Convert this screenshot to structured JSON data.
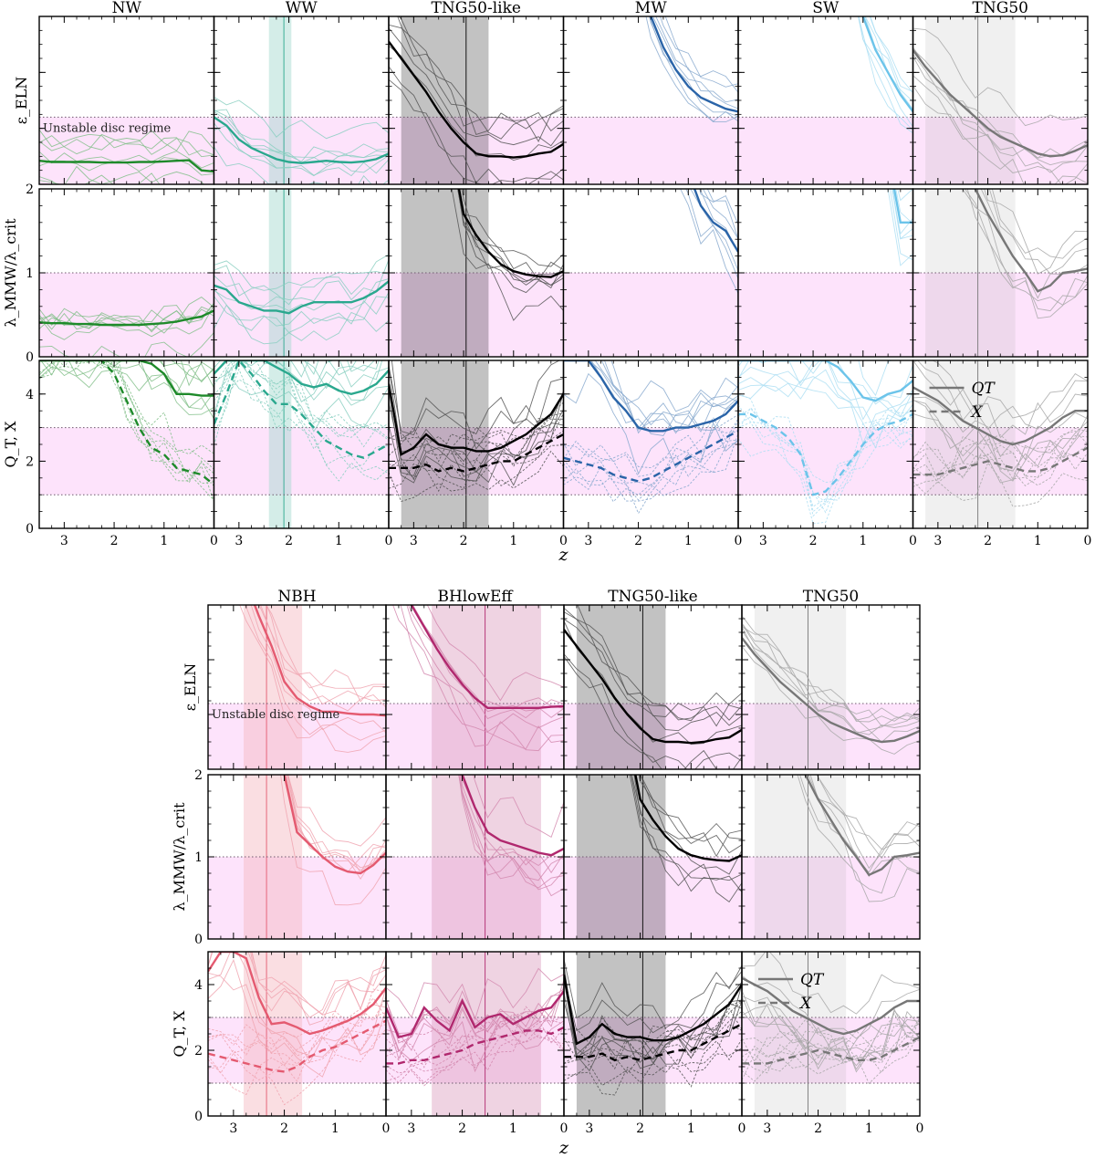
{
  "figure": {
    "x_axis_label": "z",
    "unstable_label": "Unstable disc regime",
    "legend": {
      "qt": "Q_T",
      "x": "X"
    }
  },
  "colors": {
    "unstable_fill": "#fde3fb",
    "threshold_line": "#6e5a6e",
    "NW": "#1e8a2a",
    "WW": "#2aa88e",
    "TNG50-like": "#000000",
    "MW": "#2a64a8",
    "SW": "#6cc4ea",
    "TNG50": "#777777",
    "NBH": "#e45a70",
    "BHlowEff": "#b0286e"
  },
  "chart_data": [
    {
      "type": "line",
      "panel_group": "top",
      "columns": [
        "NW",
        "WW",
        "TNG50-like",
        "MW",
        "SW",
        "TNG50"
      ],
      "rows": [
        "epsilon_ELN",
        "lambda_MMW/lambda_crit",
        "Q_T, X"
      ],
      "row_labels": [
        "ε_ELN",
        "λ_MMW/λ_crit",
        "Q_T, X"
      ],
      "xlim": [
        3.5,
        0
      ],
      "xticks": [
        3,
        2,
        1,
        0
      ],
      "row_ylims": [
        [
          0,
          3
        ],
        [
          0,
          2
        ],
        [
          0,
          5
        ]
      ],
      "row_yticks": [
        [],
        [
          0,
          1,
          2
        ],
        [
          0,
          2,
          4
        ]
      ],
      "thresholds": {
        "epsilon_ELN": 1.2,
        "lambda": 1.0,
        "Q_T, X": [
          1,
          3
        ]
      },
      "highlight_bands": {
        "WW": [
          2.4,
          1.95
        ],
        "TNG50-like": [
          3.25,
          1.5
        ],
        "TNG50": [
          3.25,
          1.45
        ]
      },
      "highlight_lines": {
        "WW": 2.1,
        "TNG50-like": 1.95,
        "TNG50": 2.2
      },
      "x": [
        3.5,
        3.25,
        3.0,
        2.75,
        2.5,
        2.25,
        2.0,
        1.75,
        1.5,
        1.25,
        1.0,
        0.75,
        0.5,
        0.25,
        0.0
      ],
      "series": {
        "NW": {
          "epsilon_ELN": [
            0.42,
            0.4,
            0.4,
            0.4,
            0.4,
            0.39,
            0.39,
            0.39,
            0.4,
            0.4,
            0.41,
            0.42,
            0.43,
            0.25,
            0.23
          ],
          "lambda": [
            0.41,
            0.4,
            0.4,
            0.39,
            0.39,
            0.38,
            0.38,
            0.38,
            0.38,
            0.39,
            0.4,
            0.42,
            0.45,
            0.48,
            0.55
          ],
          "Q_T": [
            5,
            5,
            5,
            5,
            5,
            5,
            5,
            5,
            5,
            4.9,
            4.6,
            4.0,
            4.0,
            3.95,
            3.95
          ],
          "X": [
            5,
            5,
            5,
            5,
            5,
            5,
            4.6,
            3.8,
            3.0,
            2.4,
            2.2,
            1.8,
            1.7,
            1.6,
            1.3
          ]
        },
        "WW": {
          "epsilon_ELN": [
            1.2,
            1.05,
            0.8,
            0.65,
            0.55,
            0.45,
            0.4,
            0.38,
            0.4,
            0.42,
            0.4,
            0.39,
            0.41,
            0.45,
            0.55
          ],
          "lambda": [
            0.85,
            0.8,
            0.65,
            0.6,
            0.55,
            0.55,
            0.52,
            0.6,
            0.65,
            0.65,
            0.65,
            0.65,
            0.7,
            0.78,
            0.9
          ],
          "Q_T": [
            4.6,
            5,
            5,
            5,
            5,
            4.8,
            4.6,
            4.3,
            4.2,
            4.3,
            4.1,
            4.0,
            4.1,
            4.3,
            4.7
          ],
          "X": [
            3.1,
            4.0,
            5.0,
            4.6,
            4.1,
            3.7,
            3.7,
            3.4,
            3.0,
            2.6,
            2.4,
            2.2,
            2.1,
            2.3,
            2.5
          ]
        },
        "TNG50-like": {
          "epsilon_ELN": [
            2.55,
            2.25,
            1.95,
            1.65,
            1.3,
            1.0,
            0.75,
            0.55,
            0.5,
            0.5,
            0.48,
            0.5,
            0.55,
            0.58,
            0.72
          ],
          "lambda": [
            3,
            3,
            3,
            3,
            3,
            2.5,
            1.7,
            1.45,
            1.25,
            1.1,
            1.02,
            0.98,
            0.96,
            0.95,
            1.02
          ],
          "Q_T": [
            4.3,
            2.2,
            2.4,
            2.8,
            2.5,
            2.4,
            2.4,
            2.3,
            2.3,
            2.4,
            2.6,
            2.8,
            3.1,
            3.4,
            4.0
          ],
          "X": [
            1.8,
            1.8,
            1.8,
            1.9,
            1.7,
            1.8,
            1.7,
            1.8,
            1.9,
            2.0,
            2.0,
            2.2,
            2.4,
            2.6,
            2.8
          ]
        },
        "MW": {
          "epsilon_ELN": [
            4,
            4,
            4,
            4,
            4,
            4,
            4,
            3.0,
            2.45,
            2.05,
            1.75,
            1.55,
            1.45,
            1.35,
            1.3
          ],
          "lambda": [
            3,
            3,
            3,
            3,
            3,
            3,
            3,
            3,
            3,
            2.6,
            2.2,
            1.8,
            1.6,
            1.5,
            1.25
          ],
          "Q_T": [
            5,
            5,
            5,
            4.5,
            3.9,
            3.5,
            3.0,
            2.9,
            2.9,
            3.0,
            3.0,
            3.1,
            3.2,
            3.4,
            3.8
          ],
          "X": [
            2.1,
            2.0,
            1.9,
            1.8,
            1.6,
            1.5,
            1.4,
            1.5,
            1.7,
            1.9,
            2.1,
            2.3,
            2.5,
            2.7,
            2.9
          ]
        },
        "SW": {
          "epsilon_ELN": [
            4,
            4,
            4,
            4,
            4,
            4,
            4,
            4,
            4,
            4,
            3.0,
            2.4,
            2.0,
            1.6,
            1.3
          ],
          "lambda": [
            3,
            3,
            3,
            3,
            3,
            3,
            3,
            3,
            3,
            3,
            3,
            3,
            2.4,
            1.6,
            1.6
          ],
          "Q_T": [
            5,
            5,
            5,
            5,
            5,
            5,
            5,
            5,
            4.8,
            4.4,
            3.9,
            3.8,
            4.0,
            4.1,
            4.4
          ],
          "X": [
            3.4,
            3.4,
            3.2,
            3.0,
            2.7,
            2.2,
            1.0,
            1.1,
            1.5,
            2.0,
            2.5,
            2.9,
            3.1,
            3.2,
            3.4
          ]
        },
        "TNG50": {
          "epsilon_ELN": [
            2.4,
            2.1,
            1.85,
            1.6,
            1.4,
            1.2,
            1.0,
            0.85,
            0.75,
            0.65,
            0.55,
            0.5,
            0.52,
            0.6,
            0.7
          ],
          "lambda": [
            3,
            3,
            3,
            2.8,
            2.4,
            2.0,
            1.7,
            1.45,
            1.2,
            1.0,
            0.78,
            0.85,
            1.0,
            1.02,
            1.05
          ],
          "Q_T": [
            4.2,
            4.0,
            3.8,
            3.5,
            3.2,
            3.0,
            2.8,
            2.6,
            2.5,
            2.6,
            2.8,
            3.0,
            3.3,
            3.5,
            3.5
          ],
          "X": [
            1.6,
            1.6,
            1.6,
            1.7,
            1.8,
            1.9,
            2.0,
            1.9,
            1.8,
            1.7,
            1.7,
            1.8,
            2.0,
            2.2,
            2.4
          ]
        }
      }
    },
    {
      "type": "line",
      "panel_group": "bottom",
      "columns": [
        "NBH",
        "BHlowEff",
        "TNG50-like",
        "TNG50"
      ],
      "rows": [
        "epsilon_ELN",
        "lambda_MMW/lambda_crit",
        "Q_T, X"
      ],
      "row_labels": [
        "ε_ELN",
        "λ_MMW/λ_crit",
        "Q_T, X"
      ],
      "xlim": [
        3.5,
        0
      ],
      "xticks": [
        3,
        2,
        1,
        0
      ],
      "row_ylims": [
        [
          0,
          3
        ],
        [
          0,
          2
        ],
        [
          0,
          5
        ]
      ],
      "row_yticks": [
        [],
        [
          0,
          1,
          2
        ],
        [
          0,
          2,
          4
        ]
      ],
      "thresholds": {
        "epsilon_ELN": 1.2,
        "lambda": 1.0,
        "Q_T, X": [
          1,
          3
        ]
      },
      "highlight_bands": {
        "NBH": [
          2.8,
          1.65
        ],
        "BHlowEff": [
          2.6,
          0.45
        ],
        "TNG50-like": [
          3.25,
          1.5
        ],
        "TNG50": [
          3.25,
          1.45
        ]
      },
      "highlight_lines": {
        "NBH": 2.35,
        "BHlowEff": 1.55,
        "TNG50-like": 1.95,
        "TNG50": 2.2
      },
      "x": [
        3.5,
        3.25,
        3.0,
        2.75,
        2.5,
        2.25,
        2.0,
        1.75,
        1.5,
        1.25,
        1.0,
        0.75,
        0.5,
        0.25,
        0.0
      ],
      "series": {
        "NBH": {
          "epsilon_ELN": [
            4,
            4,
            4,
            3.4,
            2.8,
            2.25,
            1.6,
            1.3,
            1.15,
            1.05,
            1.05,
            1.02,
            1.0,
            1.0,
            0.98
          ],
          "lambda": [
            3,
            3,
            3,
            3,
            3,
            3,
            2.0,
            1.3,
            1.15,
            1.0,
            0.88,
            0.82,
            0.8,
            0.9,
            1.05
          ],
          "Q_T": [
            4.4,
            5,
            5,
            4.8,
            3.6,
            2.8,
            2.85,
            2.7,
            2.5,
            2.6,
            2.75,
            2.9,
            3.1,
            3.4,
            3.9
          ],
          "X": [
            1.9,
            1.8,
            1.7,
            1.6,
            1.5,
            1.4,
            1.35,
            1.5,
            1.8,
            2.0,
            2.1,
            2.3,
            2.5,
            2.7,
            2.9
          ]
        },
        "BHlowEff": {
          "epsilon_ELN": [
            4,
            3.6,
            3.0,
            2.6,
            2.2,
            1.85,
            1.55,
            1.3,
            1.12,
            1.12,
            1.12,
            1.12,
            1.12,
            1.14,
            1.15
          ],
          "lambda": [
            3,
            3,
            3,
            3,
            3,
            3,
            2.0,
            1.6,
            1.3,
            1.2,
            1.15,
            1.1,
            1.05,
            1.02,
            1.1
          ],
          "Q_T": [
            3.3,
            2.4,
            2.5,
            3.3,
            2.9,
            2.6,
            3.5,
            2.7,
            3.0,
            3.1,
            2.8,
            3.0,
            3.2,
            3.3,
            3.8
          ],
          "X": [
            1.6,
            1.6,
            1.7,
            1.7,
            1.8,
            1.9,
            2.0,
            2.2,
            2.3,
            2.4,
            2.5,
            2.6,
            2.6,
            2.5,
            2.7
          ]
        },
        "TNG50-like": {
          "epsilon_ELN": [
            2.55,
            2.25,
            1.95,
            1.65,
            1.3,
            1.0,
            0.75,
            0.55,
            0.5,
            0.5,
            0.48,
            0.5,
            0.55,
            0.58,
            0.72
          ],
          "lambda": [
            3,
            3,
            3,
            3,
            3,
            2.5,
            1.7,
            1.45,
            1.25,
            1.1,
            1.02,
            0.98,
            0.96,
            0.95,
            1.02
          ],
          "Q_T": [
            4.3,
            2.2,
            2.4,
            2.8,
            2.5,
            2.4,
            2.4,
            2.3,
            2.3,
            2.4,
            2.6,
            2.8,
            3.1,
            3.4,
            4.0
          ],
          "X": [
            1.8,
            1.8,
            1.8,
            1.9,
            1.7,
            1.8,
            1.7,
            1.8,
            1.9,
            2.0,
            2.0,
            2.2,
            2.4,
            2.6,
            2.8
          ]
        },
        "TNG50": {
          "epsilon_ELN": [
            2.4,
            2.1,
            1.85,
            1.6,
            1.4,
            1.2,
            1.0,
            0.85,
            0.75,
            0.65,
            0.55,
            0.5,
            0.52,
            0.6,
            0.7
          ],
          "lambda": [
            3,
            3,
            3,
            2.8,
            2.4,
            2.0,
            1.7,
            1.45,
            1.2,
            1.0,
            0.78,
            0.85,
            1.0,
            1.02,
            1.05
          ],
          "Q_T": [
            4.2,
            4.0,
            3.8,
            3.5,
            3.2,
            3.0,
            2.8,
            2.6,
            2.5,
            2.6,
            2.8,
            3.0,
            3.3,
            3.5,
            3.5
          ],
          "X": [
            1.6,
            1.6,
            1.6,
            1.7,
            1.8,
            1.9,
            2.0,
            1.9,
            1.8,
            1.7,
            1.7,
            1.8,
            2.0,
            2.2,
            2.4
          ]
        }
      }
    }
  ]
}
